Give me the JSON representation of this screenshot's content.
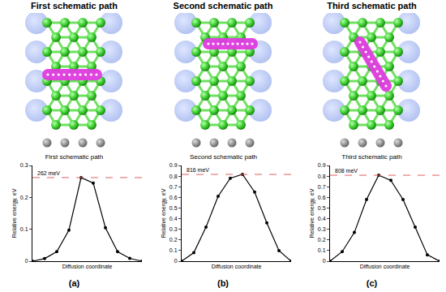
{
  "figure": {
    "headers": [
      "First schematic path",
      "Second schematic path",
      "Third schematic path"
    ],
    "panel_labels": [
      "(a)",
      "(b)",
      "(c)"
    ]
  },
  "chart_data": [
    {
      "type": "line",
      "title": "First schematic path",
      "x_label": "Diffusion coordinate",
      "y_label": "Relative energy, eV",
      "x": [
        0,
        1,
        2,
        3,
        4,
        5,
        6,
        7,
        8,
        9
      ],
      "values": [
        0,
        0.008,
        0.03,
        0.097,
        0.262,
        0.245,
        0.105,
        0.03,
        0.009,
        0
      ],
      "color": "#000000",
      "marker": "circle",
      "xlim": [
        0,
        9
      ],
      "ylim": [
        0,
        0.3
      ],
      "yticks": [
        0,
        0.1,
        0.2,
        0.3
      ],
      "tick_labels": "y",
      "peak_line": 0.262,
      "annotation": "262 meV"
    },
    {
      "type": "line",
      "title": "Second schematic path",
      "x_label": "Diffusion coordinate",
      "y_label": "Relative energy, eV",
      "x": [
        0,
        1,
        2,
        3,
        4,
        5,
        6,
        7,
        8,
        9
      ],
      "values": [
        0,
        0.08,
        0.32,
        0.61,
        0.78,
        0.816,
        0.65,
        0.36,
        0.1,
        0
      ],
      "color": "#000000",
      "marker": "circle",
      "xlim": [
        0,
        9
      ],
      "ylim": [
        0,
        0.9
      ],
      "yticks": [
        0,
        0.1,
        0.2,
        0.3,
        0.4,
        0.5,
        0.6,
        0.7,
        0.8,
        0.9
      ],
      "tick_labels": "y",
      "peak_line": 0.816,
      "annotation": "816 meV"
    },
    {
      "type": "line",
      "title": "Third schematic path",
      "x_label": "Diffusion coordinate",
      "y_label": "Relative energy, eV",
      "x": [
        0,
        1,
        2,
        3,
        4,
        5,
        6,
        7,
        8,
        9
      ],
      "values": [
        0,
        0.09,
        0.27,
        0.58,
        0.808,
        0.76,
        0.58,
        0.32,
        0.06,
        0
      ],
      "color": "#000000",
      "marker": "circle",
      "xlim": [
        0,
        9
      ],
      "ylim": [
        0,
        0.9
      ],
      "yticks": [
        0,
        0.1,
        0.2,
        0.3,
        0.4,
        0.5,
        0.6,
        0.7,
        0.8,
        0.9
      ],
      "tick_labels": "y",
      "peak_line": 0.808,
      "annotation": "808 meV"
    }
  ]
}
